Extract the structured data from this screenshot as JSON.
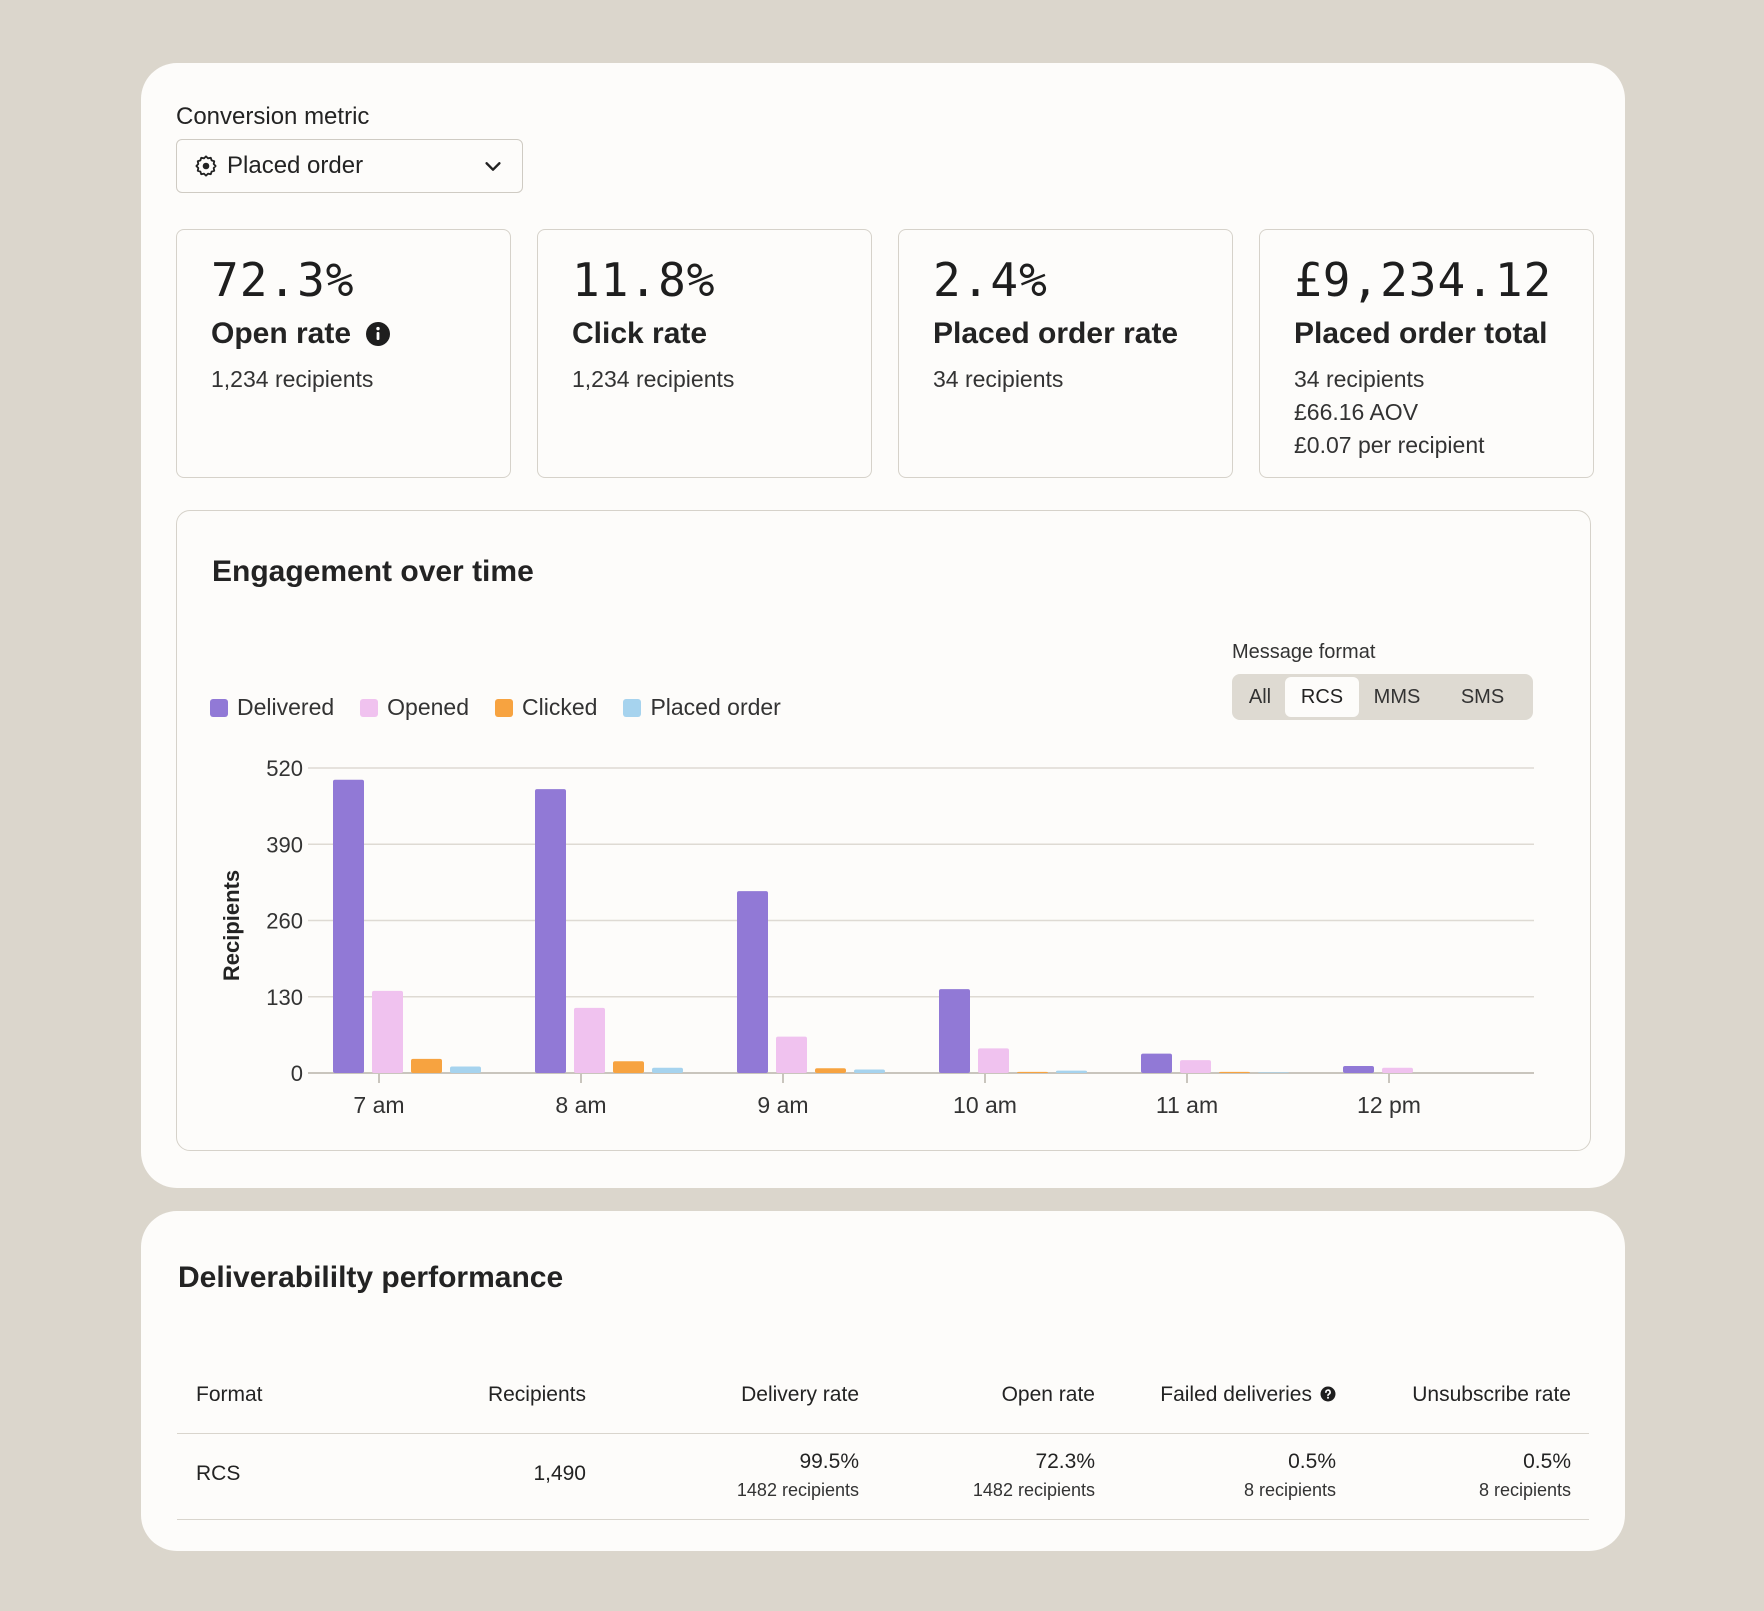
{
  "conversion_metric": {
    "label": "Conversion metric",
    "selected": "Placed order"
  },
  "kpis": [
    {
      "value": "72.3%",
      "name": "Open rate",
      "lines": [
        "1,234 recipients"
      ],
      "has_info": true
    },
    {
      "value": "11.8%",
      "name": "Click rate",
      "lines": [
        "1,234 recipients"
      ]
    },
    {
      "value": "2.4%",
      "name": "Placed order rate",
      "lines": [
        "34 recipients"
      ]
    },
    {
      "value": "£9,234.12",
      "name": "Placed order total",
      "lines": [
        "34 recipients",
        "£66.16 AOV",
        "£0.07 per recipient"
      ]
    }
  ],
  "engagement": {
    "title": "Engagement over time",
    "format_label": "Message format",
    "formats": [
      "All",
      "RCS",
      "MMS",
      "SMS"
    ],
    "active_format": "RCS"
  },
  "chart_data": {
    "type": "bar",
    "title": "Engagement over time",
    "xlabel": "",
    "ylabel": "Recipients",
    "ylim": [
      0,
      520
    ],
    "yticks": [
      0,
      130,
      260,
      390,
      520
    ],
    "grid": true,
    "legend_position": "top-left",
    "categories": [
      "7 am",
      "8 am",
      "9 am",
      "10 am",
      "11 am",
      "12 pm"
    ],
    "series": [
      {
        "name": "Delivered",
        "color": "#9179d6",
        "values": [
          500,
          484,
          310,
          143,
          33,
          12
        ]
      },
      {
        "name": "Opened",
        "color": "#f0c2ef",
        "values": [
          140,
          111,
          62,
          42,
          22,
          9
        ]
      },
      {
        "name": "Clicked",
        "color": "#f7a340",
        "values": [
          24,
          20,
          8,
          2,
          2,
          0
        ]
      },
      {
        "name": "Placed order",
        "color": "#a6d3ee",
        "values": [
          11,
          9,
          6,
          4,
          1,
          0
        ]
      }
    ]
  },
  "deliverability": {
    "title": "Deliverabililty performance",
    "columns": [
      "Format",
      "Recipients",
      "Delivery rate",
      "Open rate",
      "Failed deliveries",
      "Unsubscribe rate"
    ],
    "rows": [
      {
        "format": "RCS",
        "recipients": "1,490",
        "delivery_rate": "99.5%",
        "delivery_sub": "1482 recipients",
        "open_rate": "72.3%",
        "open_sub": "1482 recipients",
        "failed": "0.5%",
        "failed_sub": "8 recipients",
        "unsub": "0.5%",
        "unsub_sub": "8 recipients"
      }
    ]
  }
}
